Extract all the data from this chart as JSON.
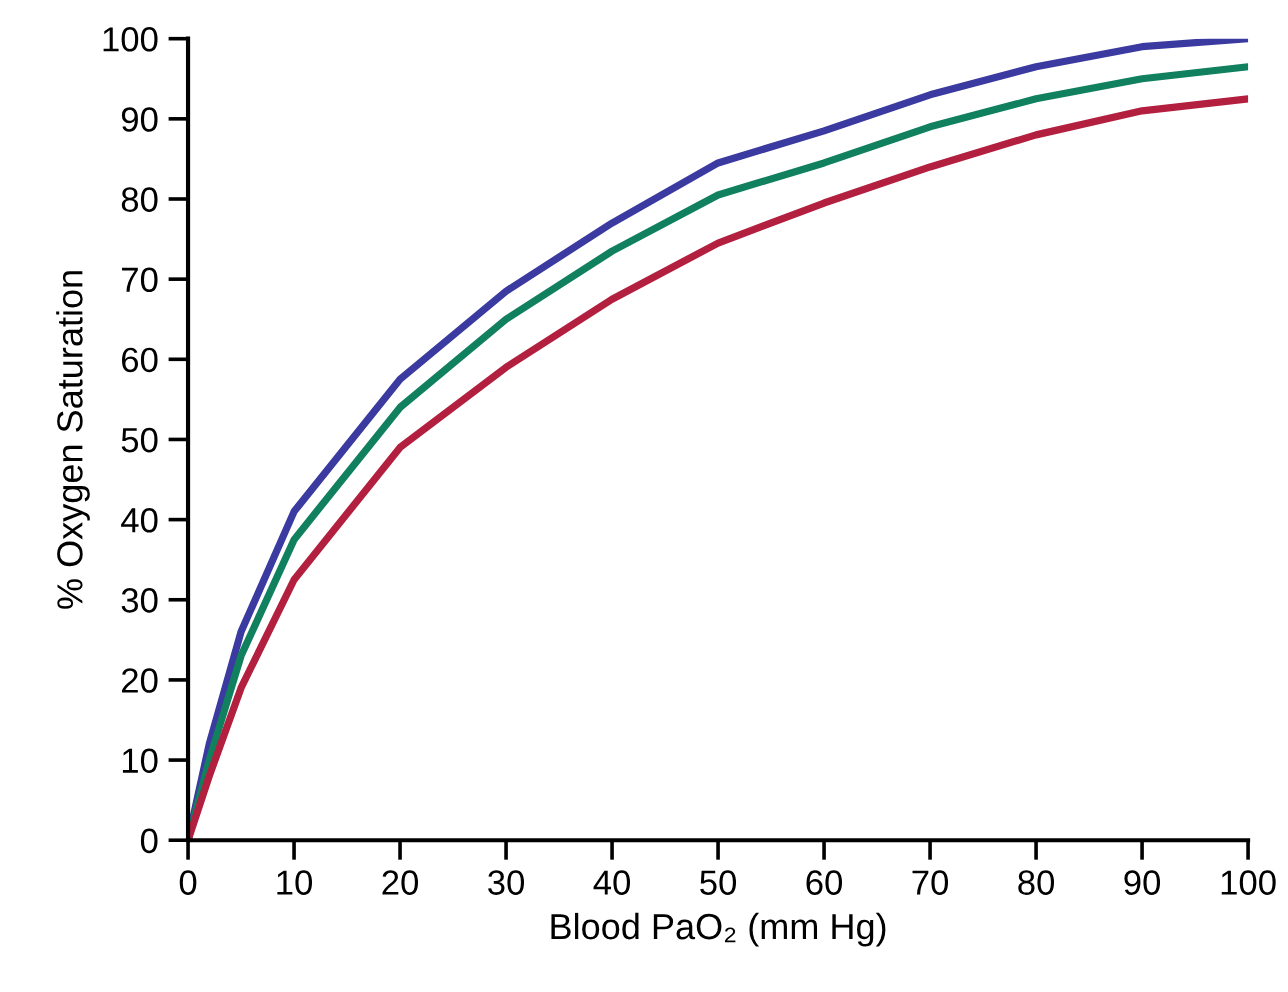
{
  "chart_data": {
    "type": "line",
    "xlabel": "Blood PaO₂ (mm Hg)",
    "ylabel": "% Oxygen Saturation",
    "x": [
      0,
      2,
      5,
      10,
      20,
      30,
      40,
      50,
      60,
      70,
      80,
      90,
      100
    ],
    "series": [
      {
        "color": "#3a3aa0",
        "values": [
          0,
          12,
          26,
          41,
          57.5,
          68.5,
          77,
          84.5,
          88.5,
          93,
          96.5,
          99,
          100
        ]
      },
      {
        "color": "#10805e",
        "values": [
          0,
          10,
          23,
          37.5,
          54,
          65,
          73.5,
          80.5,
          84.5,
          89,
          92.5,
          95,
          96.5
        ]
      },
      {
        "color": "#b3203f",
        "values": [
          0,
          8,
          19,
          32.5,
          49,
          59,
          67.5,
          74.5,
          79.5,
          84,
          88,
          91,
          92.5
        ]
      }
    ],
    "xlim": [
      0,
      100
    ],
    "ylim": [
      0,
      100
    ],
    "xticks": [
      0,
      10,
      20,
      30,
      40,
      50,
      60,
      70,
      80,
      90,
      100
    ],
    "yticks": [
      0,
      10,
      20,
      30,
      40,
      50,
      60,
      70,
      80,
      90,
      100
    ],
    "grid": false,
    "marker": "none",
    "line_style": "solid"
  }
}
